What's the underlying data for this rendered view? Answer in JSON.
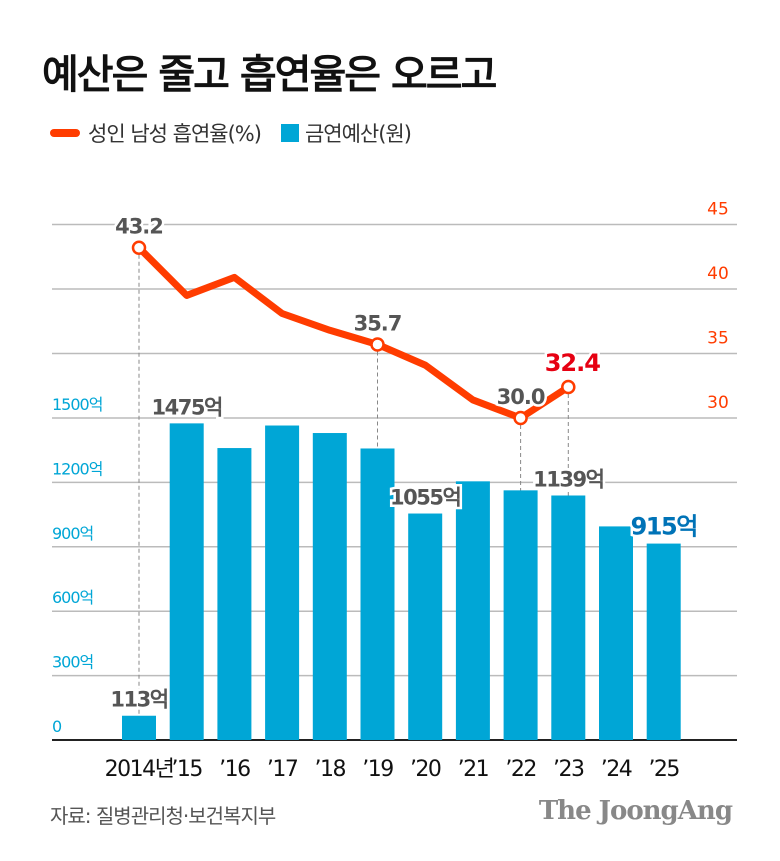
{
  "title": "예산은 줄고 흡연율은 오르고",
  "legend": {
    "line": "성인 남성 흡연율(%)",
    "bar": "금연예산(원)"
  },
  "source": "자료: 질병관리청·보건복지부",
  "logo": "The JoongAng",
  "colors": {
    "bar": "#00a6d6",
    "line": "#ff3c00",
    "highlight_line_label": "#e60012",
    "highlight_bar_label": "#0073b7",
    "label": "#555555"
  },
  "chart_data": {
    "type": "bar+line",
    "categories": [
      "2014년",
      "’15",
      "’16",
      "’17",
      "’18",
      "’19",
      "’20",
      "’21",
      "’22",
      "’23",
      "’24",
      "’25"
    ],
    "series": [
      {
        "name": "금연예산(원)",
        "type": "bar",
        "axis": "left",
        "unit": "억",
        "values": [
          113,
          1475,
          1360,
          1465,
          1430,
          1358,
          1055,
          1205,
          1163,
          1139,
          995,
          915
        ]
      },
      {
        "name": "성인 남성 흡연율(%)",
        "type": "line",
        "axis": "right",
        "values": [
          43.2,
          39.5,
          40.9,
          38.1,
          36.8,
          35.7,
          34.1,
          31.4,
          30.0,
          32.4,
          null,
          null
        ]
      }
    ],
    "bar_labels": [
      {
        "index": 0,
        "text": "113억"
      },
      {
        "index": 1,
        "text": "1475억"
      },
      {
        "index": 6,
        "text": "1055억"
      },
      {
        "index": 9,
        "text": "1139억"
      },
      {
        "index": 11,
        "text": "915억",
        "highlight": true
      }
    ],
    "line_labels": [
      {
        "index": 0,
        "text": "43.2"
      },
      {
        "index": 5,
        "text": "35.7"
      },
      {
        "index": 8,
        "text": "30.0"
      },
      {
        "index": 9,
        "text": "32.4",
        "highlight": true
      }
    ],
    "left_axis": {
      "ticks": [
        0,
        300,
        600,
        900,
        1200,
        1500
      ],
      "tick_labels": [
        "0",
        "300억",
        "600억",
        "900억",
        "1200억",
        "1500억"
      ],
      "range": [
        0,
        1500
      ]
    },
    "right_axis": {
      "ticks": [
        30,
        35,
        40,
        45
      ],
      "tick_labels": [
        "30",
        "35",
        "40",
        "45"
      ],
      "range": [
        30,
        45
      ]
    },
    "grid": true
  }
}
